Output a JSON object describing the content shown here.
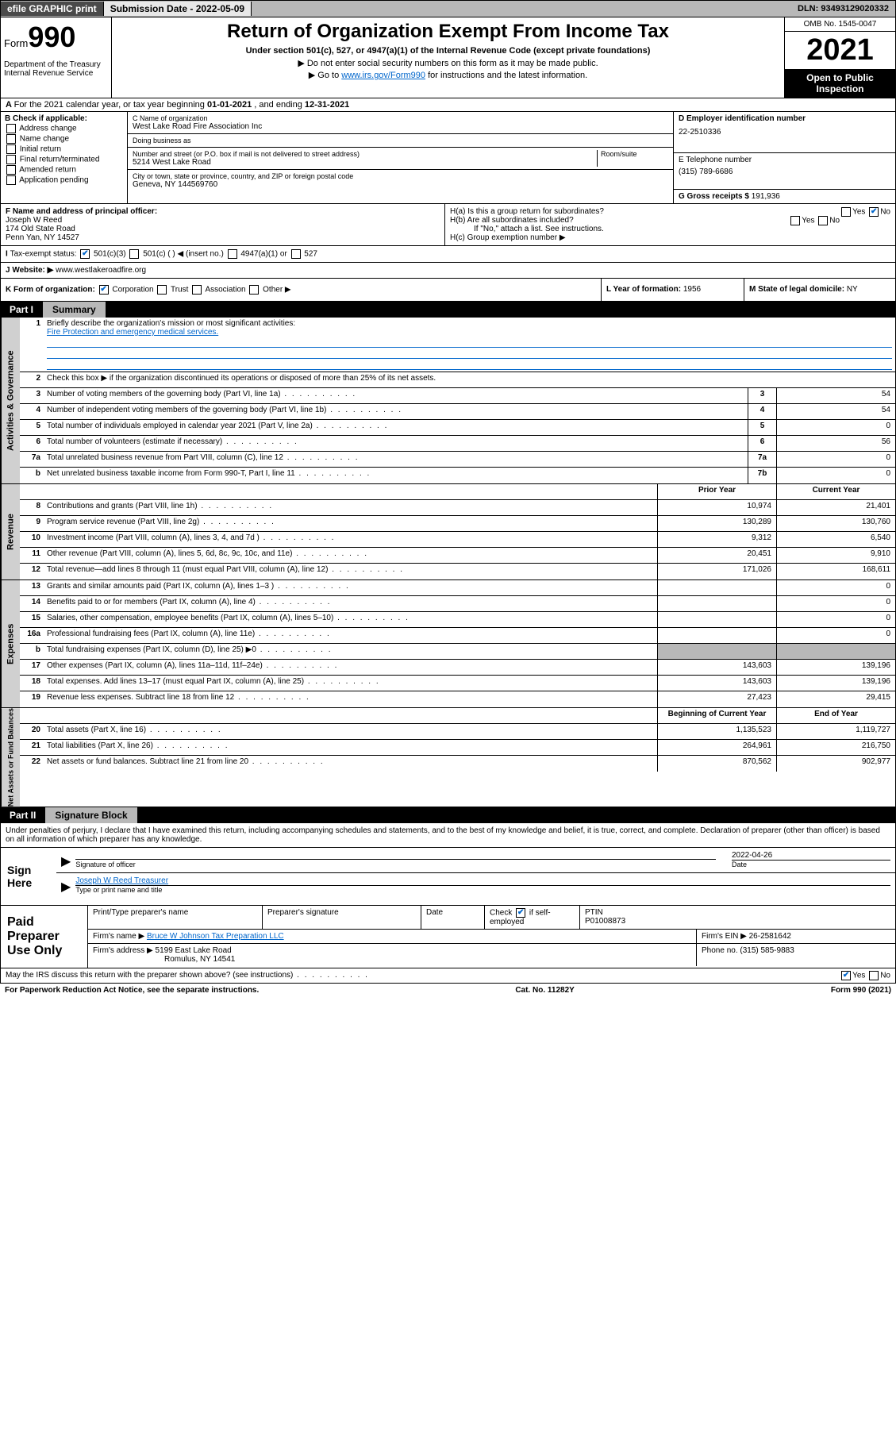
{
  "topbar": {
    "efile": "efile GRAPHIC print",
    "submission_label": "Submission Date - ",
    "submission_date": "2022-05-09",
    "dln_label": "DLN: ",
    "dln": "93493129020332"
  },
  "header": {
    "form_word": "Form",
    "form_num": "990",
    "dept": "Department of the Treasury\nInternal Revenue Service",
    "title": "Return of Organization Exempt From Income Tax",
    "sub": "Under section 501(c), 527, or 4947(a)(1) of the Internal Revenue Code (except private foundations)",
    "arrow1": "▶ Do not enter social security numbers on this form as it may be made public.",
    "arrow2_pre": "▶ Go to ",
    "arrow2_link": "www.irs.gov/Form990",
    "arrow2_post": " for instructions and the latest information.",
    "omb": "OMB No. 1545-0047",
    "year": "2021",
    "open": "Open to Public Inspection"
  },
  "rowA": {
    "text_pre": "For the 2021 calendar year, or tax year beginning ",
    "begin": "01-01-2021",
    "mid": " , and ending ",
    "end": "12-31-2021"
  },
  "B": {
    "label": "B Check if applicable:",
    "items": [
      "Address change",
      "Name change",
      "Initial return",
      "Final return/terminated",
      "Amended return",
      "Application pending"
    ]
  },
  "C": {
    "name_label": "C Name of organization",
    "name": "West Lake Road Fire Association Inc",
    "dba_label": "Doing business as",
    "dba": "",
    "street_label": "Number and street (or P.O. box if mail is not delivered to street address)",
    "room_label": "Room/suite",
    "street": "5214 West Lake Road",
    "city_label": "City or town, state or province, country, and ZIP or foreign postal code",
    "city": "Geneva, NY  144569760"
  },
  "D": {
    "ein_label": "D Employer identification number",
    "ein": "22-2510336",
    "tel_label": "E Telephone number",
    "tel": "(315) 789-6686",
    "gross_label": "G Gross receipts $ ",
    "gross": "191,936"
  },
  "F": {
    "label": "F  Name and address of principal officer:",
    "name": "Joseph W Reed",
    "addr1": "174 Old State Road",
    "addr2": "Penn Yan, NY  14527"
  },
  "H": {
    "a": "H(a)  Is this a group return for subordinates?",
    "a_yes": "Yes",
    "a_no": "No",
    "b": "H(b)  Are all subordinates included?",
    "b_yes": "Yes",
    "b_no": "No",
    "b_note": "If \"No,\" attach a list. See instructions.",
    "c": "H(c)  Group exemption number ▶"
  },
  "I": {
    "label": "Tax-exempt status:",
    "opt1": "501(c)(3)",
    "opt2": "501(c) (  ) ◀ (insert no.)",
    "opt3": "4947(a)(1) or",
    "opt4": "527"
  },
  "J": {
    "label": "Website: ▶ ",
    "url": "www.westlakeroadfire.org"
  },
  "K": {
    "label": "K Form of organization:",
    "opts": [
      "Corporation",
      "Trust",
      "Association",
      "Other ▶"
    ]
  },
  "L": {
    "label": "L Year of formation: ",
    "val": "1956"
  },
  "M": {
    "label": "M State of legal domicile: ",
    "val": "NY"
  },
  "partI": {
    "num": "Part I",
    "title": "Summary"
  },
  "summary": {
    "line1_label": "Briefly describe the organization's mission or most significant activities:",
    "line1_val": "Fire Protection and emergency medical services.",
    "line2": "Check this box ▶        if the organization discontinued its operations or disposed of more than 25% of its net assets.",
    "rows_gov": [
      {
        "n": "3",
        "d": "Number of voting members of the governing body (Part VI, line 1a)",
        "c": "3",
        "v": "54"
      },
      {
        "n": "4",
        "d": "Number of independent voting members of the governing body (Part VI, line 1b)",
        "c": "4",
        "v": "54"
      },
      {
        "n": "5",
        "d": "Total number of individuals employed in calendar year 2021 (Part V, line 2a)",
        "c": "5",
        "v": "0"
      },
      {
        "n": "6",
        "d": "Total number of volunteers (estimate if necessary)",
        "c": "6",
        "v": "56"
      },
      {
        "n": "7a",
        "d": "Total unrelated business revenue from Part VIII, column (C), line 12",
        "c": "7a",
        "v": "0"
      },
      {
        "n": "b",
        "d": "Net unrelated business taxable income from Form 990-T, Part I, line 11",
        "c": "7b",
        "v": "0"
      }
    ],
    "col_prior": "Prior Year",
    "col_current": "Current Year",
    "rows_rev": [
      {
        "n": "8",
        "d": "Contributions and grants (Part VIII, line 1h)",
        "p": "10,974",
        "c": "21,401"
      },
      {
        "n": "9",
        "d": "Program service revenue (Part VIII, line 2g)",
        "p": "130,289",
        "c": "130,760"
      },
      {
        "n": "10",
        "d": "Investment income (Part VIII, column (A), lines 3, 4, and 7d )",
        "p": "9,312",
        "c": "6,540"
      },
      {
        "n": "11",
        "d": "Other revenue (Part VIII, column (A), lines 5, 6d, 8c, 9c, 10c, and 11e)",
        "p": "20,451",
        "c": "9,910"
      },
      {
        "n": "12",
        "d": "Total revenue—add lines 8 through 11 (must equal Part VIII, column (A), line 12)",
        "p": "171,026",
        "c": "168,611"
      }
    ],
    "rows_exp": [
      {
        "n": "13",
        "d": "Grants and similar amounts paid (Part IX, column (A), lines 1–3 )",
        "p": "",
        "c": "0"
      },
      {
        "n": "14",
        "d": "Benefits paid to or for members (Part IX, column (A), line 4)",
        "p": "",
        "c": "0"
      },
      {
        "n": "15",
        "d": "Salaries, other compensation, employee benefits (Part IX, column (A), lines 5–10)",
        "p": "",
        "c": "0"
      },
      {
        "n": "16a",
        "d": "Professional fundraising fees (Part IX, column (A), line 11e)",
        "p": "",
        "c": "0"
      },
      {
        "n": "b",
        "d": "Total fundraising expenses (Part IX, column (D), line 25) ▶0",
        "p": "GREY",
        "c": "GREY"
      },
      {
        "n": "17",
        "d": "Other expenses (Part IX, column (A), lines 11a–11d, 11f–24e)",
        "p": "143,603",
        "c": "139,196"
      },
      {
        "n": "18",
        "d": "Total expenses. Add lines 13–17 (must equal Part IX, column (A), line 25)",
        "p": "143,603",
        "c": "139,196"
      },
      {
        "n": "19",
        "d": "Revenue less expenses. Subtract line 18 from line 12",
        "p": "27,423",
        "c": "29,415"
      }
    ],
    "col_begin": "Beginning of Current Year",
    "col_end": "End of Year",
    "rows_net": [
      {
        "n": "20",
        "d": "Total assets (Part X, line 16)",
        "p": "1,135,523",
        "c": "1,119,727"
      },
      {
        "n": "21",
        "d": "Total liabilities (Part X, line 26)",
        "p": "264,961",
        "c": "216,750"
      },
      {
        "n": "22",
        "d": "Net assets or fund balances. Subtract line 21 from line 20",
        "p": "870,562",
        "c": "902,977"
      }
    ]
  },
  "sidelabels": {
    "gov": "Activities & Governance",
    "rev": "Revenue",
    "exp": "Expenses",
    "net": "Net Assets or Fund Balances"
  },
  "partII": {
    "num": "Part II",
    "title": "Signature Block"
  },
  "partII_text": "Under penalties of perjury, I declare that I have examined this return, including accompanying schedules and statements, and to the best of my knowledge and belief, it is true, correct, and complete. Declaration of preparer (other than officer) is based on all information of which preparer has any knowledge.",
  "sign": {
    "here": "Sign Here",
    "sig_label": "Signature of officer",
    "date_label": "Date",
    "date": "2022-04-26",
    "name": "Joseph W Reed  Treasurer",
    "name_label": "Type or print name and title"
  },
  "preparer": {
    "left": "Paid Preparer Use Only",
    "h1": "Print/Type preparer's name",
    "h2": "Preparer's signature",
    "h3": "Date",
    "h4_pre": "Check",
    "h4_post": "if self-employed",
    "h5": "PTIN",
    "ptin": "P01008873",
    "firm_name_label": "Firm's name      ▶ ",
    "firm_name": "Bruce W Johnson Tax Preparation LLC",
    "firm_ein_label": "Firm's EIN ▶ ",
    "firm_ein": "26-2581642",
    "firm_addr_label": "Firm's address ▶ ",
    "firm_addr": "5199 East Lake Road",
    "firm_city": "Romulus, NY  14541",
    "phone_label": "Phone no. ",
    "phone": "(315) 585-9883"
  },
  "footer": {
    "discuss": "May the IRS discuss this return with the preparer shown above? (see instructions)",
    "yes": "Yes",
    "no": "No",
    "paperwork": "For Paperwork Reduction Act Notice, see the separate instructions.",
    "cat": "Cat. No. 11282Y",
    "form": "Form 990 (2021)"
  }
}
